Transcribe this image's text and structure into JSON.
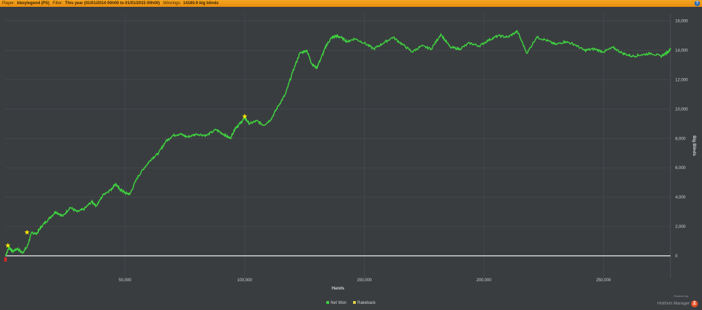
{
  "header": {
    "player_label": "Player:",
    "player_value": "bboylegend (PS)",
    "filter_label": "Filter:",
    "filter_value": "This year (01/01/2014 00h00 to 01/01/2015 00h00)",
    "winnings_label": "Winnings:",
    "winnings_value": "14160.9 big blinds",
    "help_label": "?"
  },
  "branding": {
    "powered_by": "Powered by",
    "name": "Hold'em Manager",
    "version": "2"
  },
  "colors": {
    "background": "#3a3d40",
    "net_won": "#3fd43f",
    "rakeback": "#e3d64a",
    "zero_line": "#e6e6e6",
    "grid": "#4a4e52",
    "star": "#ffe800",
    "start_marker": "#d22a2a"
  },
  "chart_data": {
    "type": "line",
    "title": "",
    "xlabel": "Hands",
    "ylabel": "Big Blinds",
    "xlim": [
      0,
      278000
    ],
    "ylim": [
      -1500,
      16500
    ],
    "x_ticks": [
      50000,
      100000,
      150000,
      200000,
      250000
    ],
    "x_tick_labels": [
      "50,000",
      "100,000",
      "150,000",
      "200,000",
      "250,000"
    ],
    "y_ticks": [
      0,
      2000,
      4000,
      6000,
      8000,
      10000,
      12000,
      14000,
      16000
    ],
    "y_tick_labels": [
      "0",
      "2,000",
      "4,000",
      "6,000",
      "8,000",
      "10,000",
      "12,000",
      "14,000",
      "16,000"
    ],
    "grid": true,
    "legend_position": "bottom-center",
    "series": [
      {
        "name": "Net Won",
        "x": [
          0,
          1500,
          3000,
          5000,
          7000,
          9000,
          11000,
          13000,
          15000,
          18000,
          21000,
          24000,
          27000,
          30000,
          33000,
          36000,
          38000,
          41000,
          44000,
          46000,
          48000,
          50000,
          52000,
          55000,
          58000,
          61000,
          64000,
          67000,
          70000,
          73000,
          76000,
          80000,
          84000,
          88000,
          91000,
          94000,
          96000,
          98000,
          100000,
          102000,
          105000,
          108000,
          111000,
          114000,
          117000,
          120000,
          123000,
          126000,
          128000,
          130000,
          132000,
          134000,
          136000,
          138000,
          140000,
          143000,
          146000,
          150000,
          154000,
          158000,
          162000,
          166000,
          170000,
          174000,
          178000,
          182000,
          186000,
          190000,
          194000,
          198000,
          202000,
          206000,
          210000,
          214000,
          218000,
          222000,
          226000,
          230000,
          234000,
          238000,
          242000,
          246000,
          250000,
          254000,
          258000,
          262000,
          266000,
          270000,
          274000,
          277000,
          278000
        ],
        "values": [
          0,
          600,
          300,
          500,
          200,
          600,
          1600,
          1500,
          2000,
          2500,
          3000,
          2700,
          3300,
          3000,
          3200,
          3700,
          3400,
          4200,
          4500,
          4900,
          4500,
          4300,
          4200,
          5300,
          6000,
          6600,
          7000,
          7800,
          8200,
          8300,
          8100,
          8300,
          8200,
          8600,
          8300,
          8000,
          8700,
          9000,
          9400,
          9000,
          9200,
          8900,
          9300,
          10200,
          11000,
          12500,
          13800,
          14000,
          13100,
          12800,
          13500,
          14300,
          14800,
          15000,
          14900,
          14600,
          14800,
          14500,
          14100,
          14500,
          14900,
          14400,
          13900,
          14300,
          14100,
          15100,
          14200,
          14100,
          14500,
          14300,
          14700,
          15000,
          14900,
          15300,
          13800,
          14900,
          14700,
          14400,
          14600,
          14400,
          14000,
          14100,
          13900,
          14200,
          13800,
          13600,
          13700,
          13800,
          13600,
          13900,
          14100
        ]
      },
      {
        "name": "Rakeback",
        "x": [
          1000,
          9000,
          100000
        ],
        "values": [
          700,
          1600,
          9500
        ]
      }
    ],
    "start_marker": {
      "x": 0,
      "value": -200
    }
  }
}
